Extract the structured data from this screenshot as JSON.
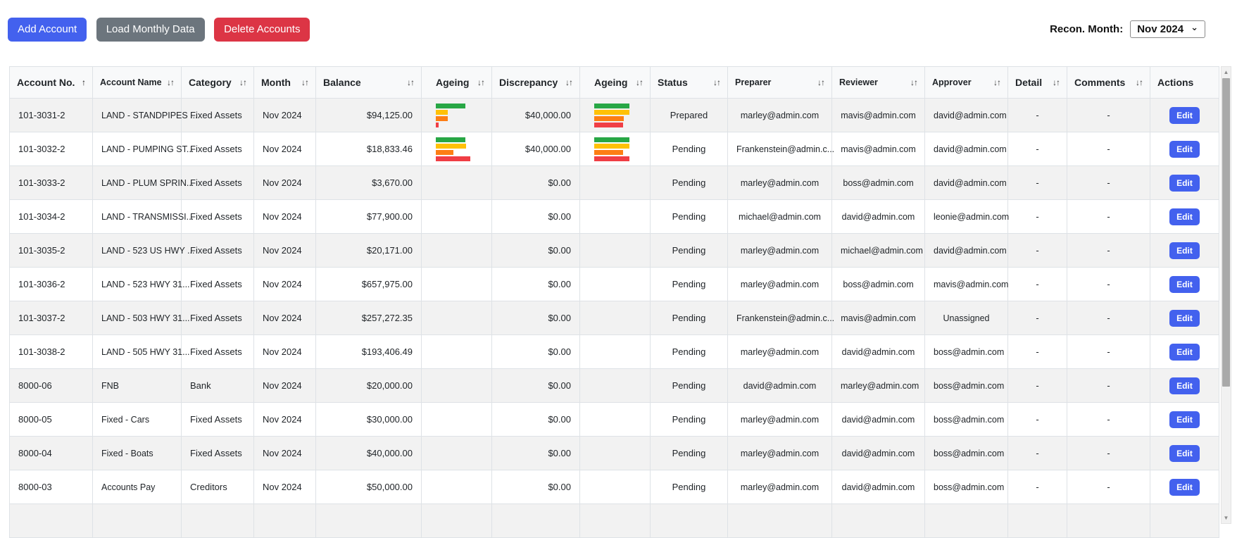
{
  "toolbar": {
    "add_account": "Add Account",
    "load_monthly_data": "Load Monthly Data",
    "delete_accounts": "Delete Accounts",
    "recon_month_label": "Recon. Month:",
    "recon_month_value": "Nov 2024"
  },
  "colors": {
    "primary_blue": "#4361ee",
    "secondary_gray": "#6c757d",
    "danger_red": "#dc3545",
    "bar_green": "#28a745",
    "bar_yellow": "#ffc107",
    "bar_orange": "#fd7e14",
    "bar_red": "#f03e45",
    "header_bg": "#f8f9fa",
    "stripe_bg": "#f2f2f2",
    "border": "#dee2e6"
  },
  "table": {
    "columns": [
      {
        "id": "account_no",
        "label": "Account No.",
        "sort_icon": "↑"
      },
      {
        "id": "account_name",
        "label": "Account Name",
        "sort_icon": "↓↑"
      },
      {
        "id": "category",
        "label": "Category",
        "sort_icon": "↓↑"
      },
      {
        "id": "month",
        "label": "Month",
        "sort_icon": "↓↑"
      },
      {
        "id": "balance",
        "label": "Balance",
        "sort_icon": "↓↑"
      },
      {
        "id": "ageing1",
        "label": "Ageing",
        "sort_icon": "↓↑"
      },
      {
        "id": "discrepancy",
        "label": "Discrepancy",
        "sort_icon": "↓↑"
      },
      {
        "id": "ageing2",
        "label": "Ageing",
        "sort_icon": "↓↑"
      },
      {
        "id": "status",
        "label": "Status",
        "sort_icon": "↓↑"
      },
      {
        "id": "preparer",
        "label": "Preparer",
        "sort_icon": "↓↑"
      },
      {
        "id": "reviewer",
        "label": "Reviewer",
        "sort_icon": "↓↑"
      },
      {
        "id": "approver",
        "label": "Approver",
        "sort_icon": "↓↑"
      },
      {
        "id": "detail",
        "label": "Detail",
        "sort_icon": "↓↑"
      },
      {
        "id": "comments",
        "label": "Comments",
        "sort_icon": "↓↑"
      },
      {
        "id": "actions",
        "label": "Actions",
        "sort_icon": ""
      }
    ],
    "ageing_bars_note": "values are bar widths as percent of chart width; order green, yellow, orange, red",
    "rows": [
      {
        "account_no": "101-3031-2",
        "account_name": "LAND - STANDPIPES ...",
        "category": "Fixed Assets",
        "month": "Nov 2024",
        "balance": "$94,125.00",
        "ageing1": [
          84,
          34,
          34,
          8
        ],
        "discrepancy": "$40,000.00",
        "ageing2": [
          100,
          100,
          84,
          82
        ],
        "status": "Prepared",
        "preparer": "marley@admin.com",
        "reviewer": "mavis@admin.com",
        "approver": "david@admin.com",
        "detail": "-",
        "comments": "-",
        "actions": "Edit"
      },
      {
        "account_no": "101-3032-2",
        "account_name": "LAND - PUMPING ST...",
        "category": "Fixed Assets",
        "month": "Nov 2024",
        "balance": "$18,833.46",
        "ageing1": [
          84,
          86,
          50,
          98
        ],
        "discrepancy": "$40,000.00",
        "ageing2": [
          100,
          100,
          82,
          100
        ],
        "status": "Pending",
        "preparer": "Frankenstein@admin.c...",
        "reviewer": "mavis@admin.com",
        "approver": "david@admin.com",
        "detail": "-",
        "comments": "-",
        "actions": "Edit"
      },
      {
        "account_no": "101-3033-2",
        "account_name": "LAND - PLUM SPRIN...",
        "category": "Fixed Assets",
        "month": "Nov 2024",
        "balance": "$3,670.00",
        "ageing1": [],
        "discrepancy": "$0.00",
        "ageing2": [],
        "status": "Pending",
        "preparer": "marley@admin.com",
        "reviewer": "boss@admin.com",
        "approver": "david@admin.com",
        "detail": "-",
        "comments": "-",
        "actions": "Edit"
      },
      {
        "account_no": "101-3034-2",
        "account_name": "LAND - TRANSMISSI...",
        "category": "Fixed Assets",
        "month": "Nov 2024",
        "balance": "$77,900.00",
        "ageing1": [],
        "discrepancy": "$0.00",
        "ageing2": [],
        "status": "Pending",
        "preparer": "michael@admin.com",
        "reviewer": "david@admin.com",
        "approver": "leonie@admin.com",
        "detail": "-",
        "comments": "-",
        "actions": "Edit"
      },
      {
        "account_no": "101-3035-2",
        "account_name": "LAND - 523 US HWY ...",
        "category": "Fixed Assets",
        "month": "Nov 2024",
        "balance": "$20,171.00",
        "ageing1": [],
        "discrepancy": "$0.00",
        "ageing2": [],
        "status": "Pending",
        "preparer": "marley@admin.com",
        "reviewer": "michael@admin.com",
        "approver": "david@admin.com",
        "detail": "-",
        "comments": "-",
        "actions": "Edit"
      },
      {
        "account_no": "101-3036-2",
        "account_name": "LAND - 523 HWY 31...",
        "category": "Fixed Assets",
        "month": "Nov 2024",
        "balance": "$657,975.00",
        "ageing1": [],
        "discrepancy": "$0.00",
        "ageing2": [],
        "status": "Pending",
        "preparer": "marley@admin.com",
        "reviewer": "boss@admin.com",
        "approver": "mavis@admin.com",
        "detail": "-",
        "comments": "-",
        "actions": "Edit"
      },
      {
        "account_no": "101-3037-2",
        "account_name": "LAND - 503 HWY 31...",
        "category": "Fixed Assets",
        "month": "Nov 2024",
        "balance": "$257,272.35",
        "ageing1": [],
        "discrepancy": "$0.00",
        "ageing2": [],
        "status": "Pending",
        "preparer": "Frankenstein@admin.c...",
        "reviewer": "mavis@admin.com",
        "approver": "Unassigned",
        "detail": "-",
        "comments": "-",
        "actions": "Edit"
      },
      {
        "account_no": "101-3038-2",
        "account_name": "LAND - 505 HWY 31...",
        "category": "Fixed Assets",
        "month": "Nov 2024",
        "balance": "$193,406.49",
        "ageing1": [],
        "discrepancy": "$0.00",
        "ageing2": [],
        "status": "Pending",
        "preparer": "marley@admin.com",
        "reviewer": "david@admin.com",
        "approver": "boss@admin.com",
        "detail": "-",
        "comments": "-",
        "actions": "Edit"
      },
      {
        "account_no": "8000-06",
        "account_name": "FNB",
        "category": "Bank",
        "month": "Nov 2024",
        "balance": "$20,000.00",
        "ageing1": [],
        "discrepancy": "$0.00",
        "ageing2": [],
        "status": "Pending",
        "preparer": "david@admin.com",
        "reviewer": "marley@admin.com",
        "approver": "boss@admin.com",
        "detail": "-",
        "comments": "-",
        "actions": "Edit"
      },
      {
        "account_no": "8000-05",
        "account_name": "Fixed - Cars",
        "category": "Fixed Assets",
        "month": "Nov 2024",
        "balance": "$30,000.00",
        "ageing1": [],
        "discrepancy": "$0.00",
        "ageing2": [],
        "status": "Pending",
        "preparer": "marley@admin.com",
        "reviewer": "david@admin.com",
        "approver": "boss@admin.com",
        "detail": "-",
        "comments": "-",
        "actions": "Edit"
      },
      {
        "account_no": "8000-04",
        "account_name": "Fixed - Boats",
        "category": "Fixed Assets",
        "month": "Nov 2024",
        "balance": "$40,000.00",
        "ageing1": [],
        "discrepancy": "$0.00",
        "ageing2": [],
        "status": "Pending",
        "preparer": "marley@admin.com",
        "reviewer": "david@admin.com",
        "approver": "boss@admin.com",
        "detail": "-",
        "comments": "-",
        "actions": "Edit"
      },
      {
        "account_no": "8000-03",
        "account_name": "Accounts Pay",
        "category": "Creditors",
        "month": "Nov 2024",
        "balance": "$50,000.00",
        "ageing1": [],
        "discrepancy": "$0.00",
        "ageing2": [],
        "status": "Pending",
        "preparer": "marley@admin.com",
        "reviewer": "david@admin.com",
        "approver": "boss@admin.com",
        "detail": "-",
        "comments": "-",
        "actions": "Edit"
      },
      {
        "account_no": "",
        "account_name": "",
        "category": "",
        "month": "",
        "balance": "",
        "ageing1": [],
        "discrepancy": "",
        "ageing2": [],
        "status": "",
        "preparer": "",
        "reviewer": "",
        "approver": "",
        "detail": "",
        "comments": "",
        "actions": ""
      }
    ]
  }
}
